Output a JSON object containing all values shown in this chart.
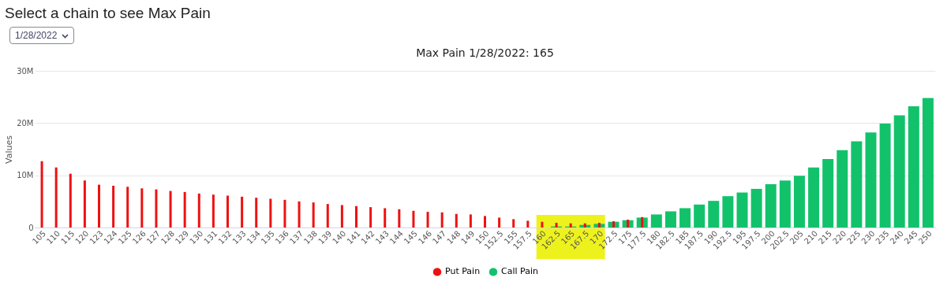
{
  "chart_data": {
    "type": "bar",
    "title": "Max Pain 1/28/2022: 165",
    "ylabel": "Values",
    "annotations": [
      "Select a chain to see Max Pain",
      "1/28/2022"
    ],
    "categories": [
      "105",
      "110",
      "115",
      "120",
      "123",
      "124",
      "125",
      "126",
      "127",
      "128",
      "129",
      "130",
      "131",
      "132",
      "133",
      "134",
      "135",
      "136",
      "137",
      "138",
      "139",
      "140",
      "141",
      "142",
      "143",
      "144",
      "145",
      "146",
      "147",
      "148",
      "149",
      "150",
      "152.5",
      "155",
      "157.5",
      "160",
      "162.5",
      "165",
      "167.5",
      "170",
      "172.5",
      "175",
      "177.5",
      "180",
      "182.5",
      "185",
      "187.5",
      "190",
      "192.5",
      "195",
      "197.5",
      "200",
      "202.5",
      "205",
      "210",
      "215",
      "220",
      "225",
      "230",
      "235",
      "240",
      "245",
      "250"
    ],
    "series": [
      {
        "name": "Put Pain",
        "color": "#ee1111",
        "values": [
          12.7,
          11.5,
          10.3,
          9.0,
          8.2,
          8.0,
          7.8,
          7.5,
          7.3,
          7.0,
          6.8,
          6.5,
          6.3,
          6.1,
          5.9,
          5.7,
          5.5,
          5.3,
          5.0,
          4.8,
          4.5,
          4.3,
          4.1,
          3.9,
          3.7,
          3.5,
          3.2,
          3.0,
          2.9,
          2.6,
          2.5,
          2.2,
          1.9,
          1.6,
          1.3,
          1.1,
          0.9,
          0.8,
          0.8,
          0.9,
          1.2,
          1.5,
          2.0,
          null,
          null,
          null,
          null,
          null,
          null,
          null,
          null,
          null,
          null,
          null,
          null,
          null,
          null,
          null,
          null,
          null,
          null,
          null,
          null
        ]
      },
      {
        "name": "Call Pain",
        "color": "#12c26b",
        "values": [
          null,
          null,
          null,
          null,
          null,
          null,
          null,
          null,
          null,
          null,
          null,
          null,
          null,
          null,
          null,
          null,
          null,
          null,
          null,
          null,
          null,
          null,
          null,
          null,
          null,
          null,
          null,
          null,
          null,
          null,
          null,
          null,
          null,
          null,
          null,
          null,
          0.2,
          0.2,
          0.5,
          0.7,
          1.1,
          1.4,
          1.9,
          2.5,
          3.1,
          3.7,
          4.4,
          5.1,
          6.0,
          6.7,
          7.4,
          8.3,
          9.0,
          9.9,
          11.5,
          13.1,
          14.8,
          16.5,
          18.2,
          19.9,
          21.5,
          23.2,
          24.8
        ]
      }
    ],
    "bands": [
      {
        "axis": "x",
        "from": "160",
        "to": "170",
        "color": "#eef21c"
      }
    ],
    "ylim": [
      0,
      30
    ],
    "yticks": [
      {
        "value": 0,
        "label": "0"
      },
      {
        "value": 10,
        "label": "10M"
      },
      {
        "value": 20,
        "label": "20M"
      },
      {
        "value": 30,
        "label": "30M"
      }
    ],
    "grid": "y",
    "legend": "bottom",
    "marker": "circle"
  }
}
